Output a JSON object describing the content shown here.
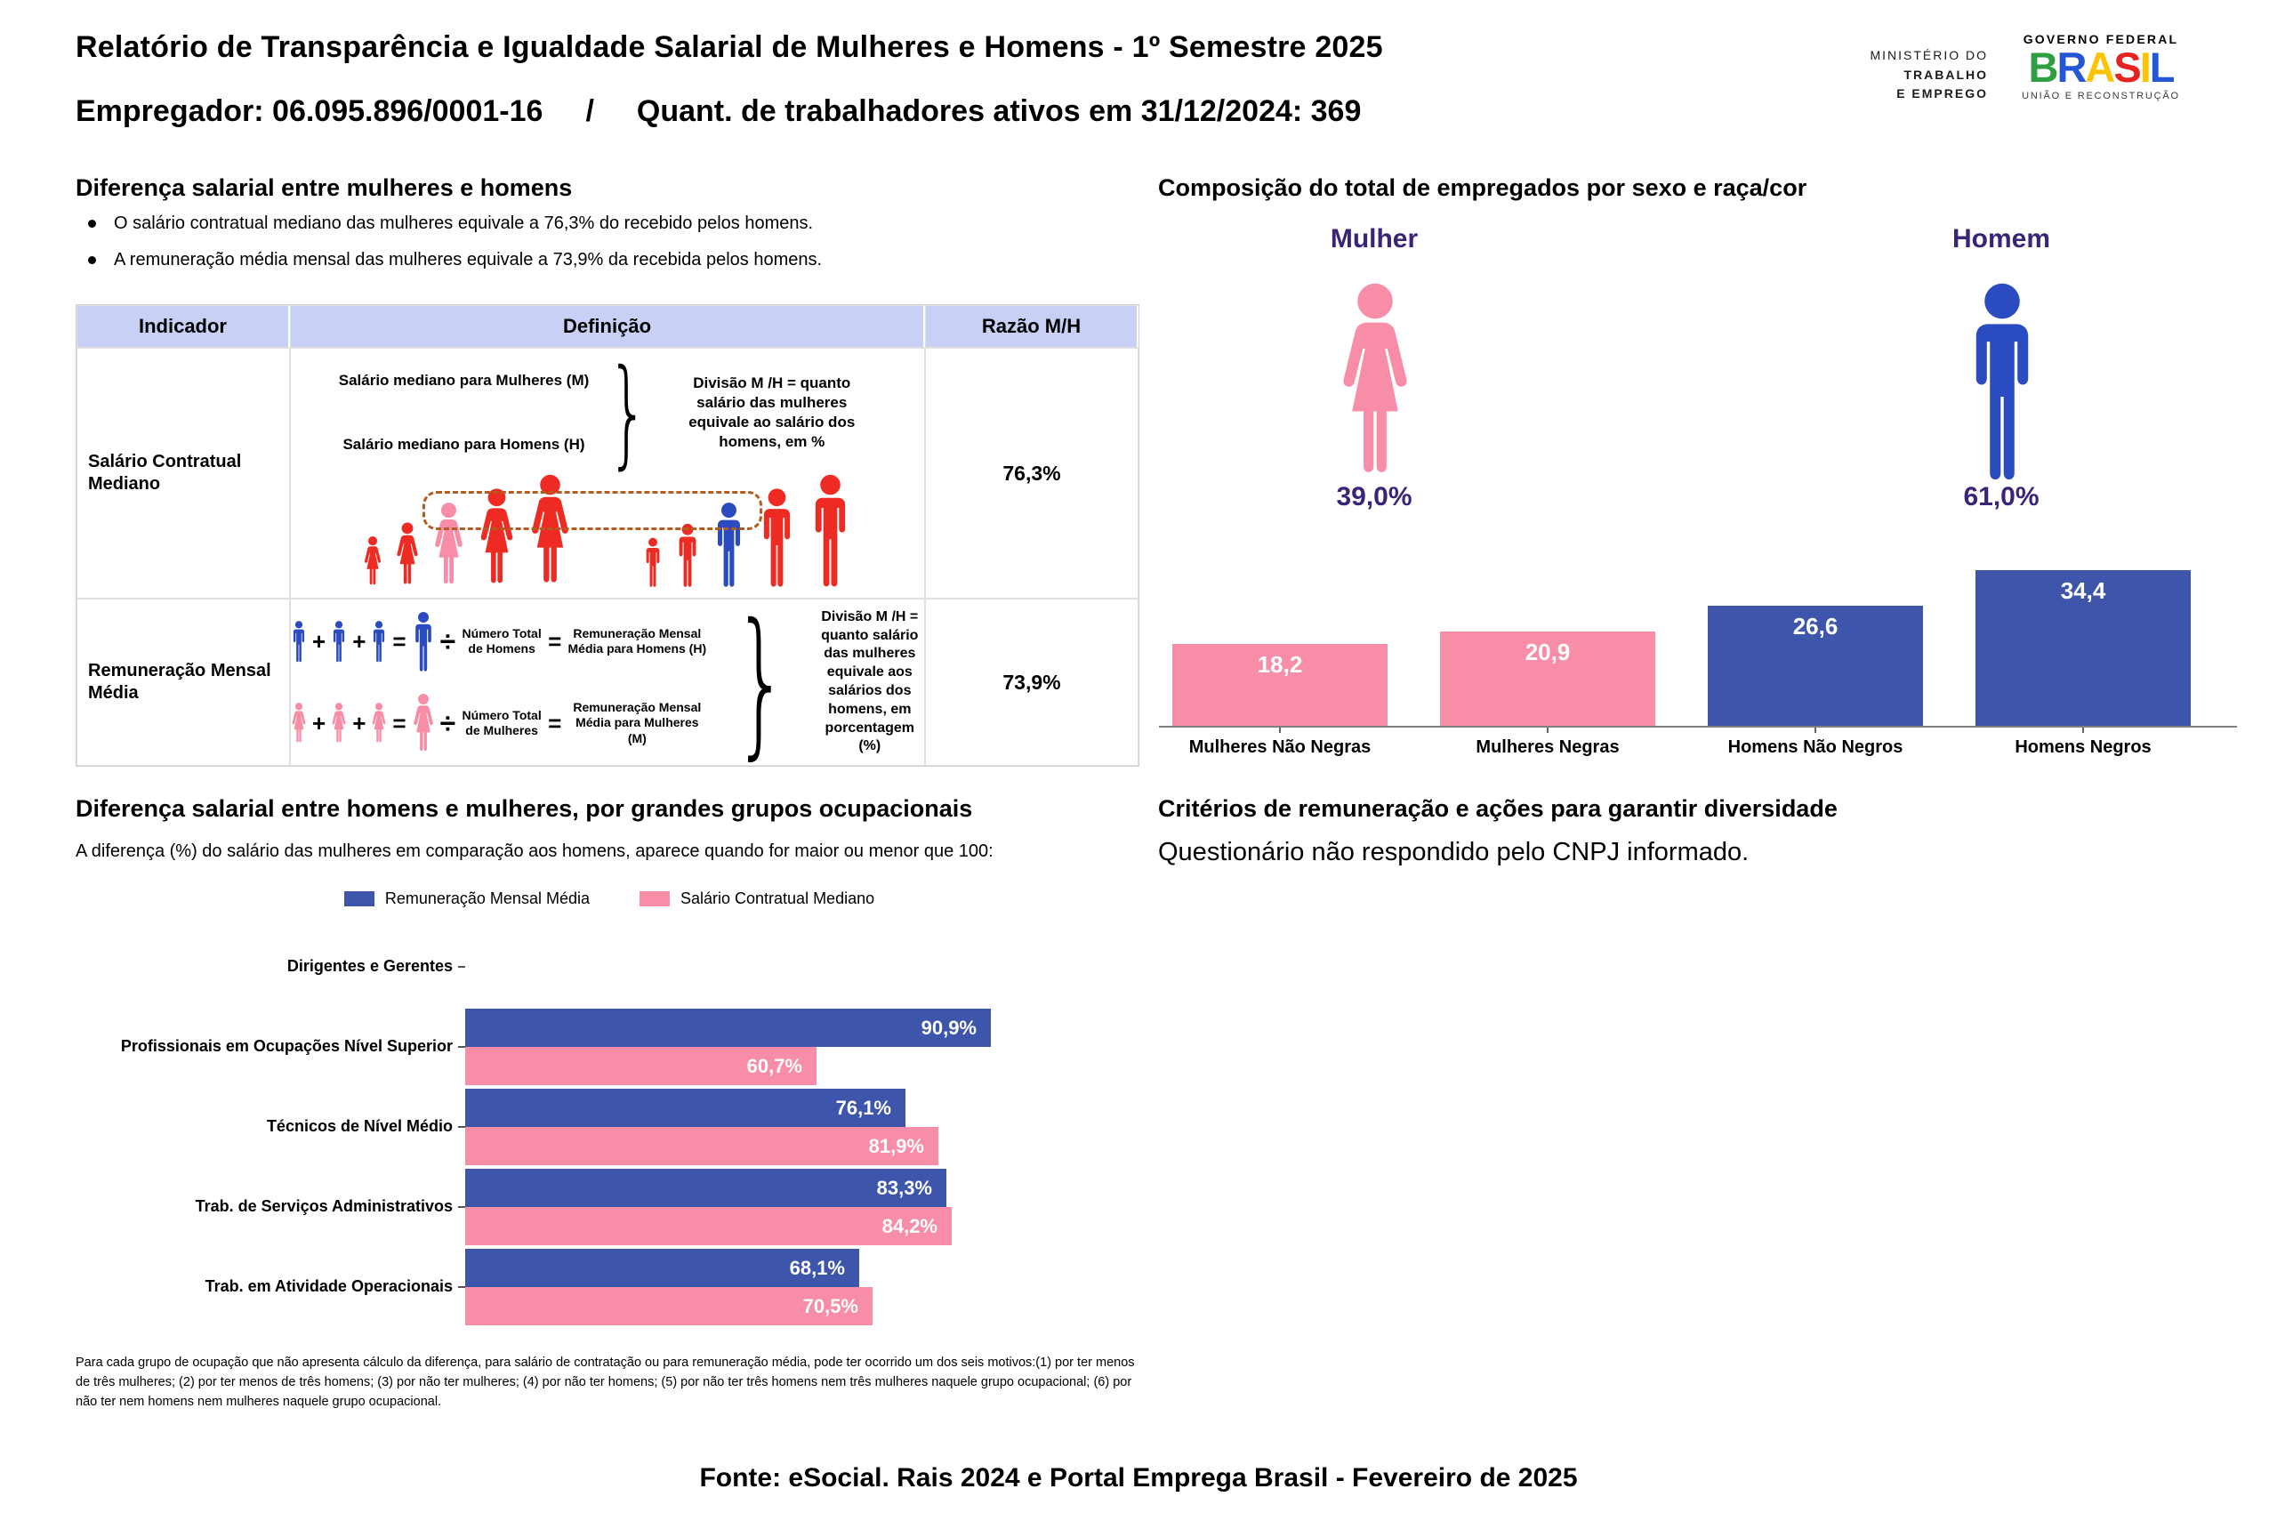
{
  "page": {
    "title": "Relatório de Transparência e Igualdade Salarial de Mulheres e Homens - 1º Semestre 2025",
    "employer": "Empregador: 06.095.896/0001-16",
    "separator": "/",
    "active_workers": "Quant. de trabalhadores ativos em 31/12/2024: 369",
    "footer_source": "Fonte: eSocial. Rais 2024 e Portal Emprega Brasil - Fevereiro de 2025"
  },
  "logos": {
    "ministry_lines": [
      "MINISTÉRIO DO",
      "TRABALHO",
      "E EMPREGO"
    ],
    "governo_federal": "GOVERNO FEDERAL",
    "brasil_letters": [
      {
        "char": "B",
        "color": "#2f9e41"
      },
      {
        "char": "R",
        "color": "#2456d8"
      },
      {
        "char": "A",
        "color": "#fcc406"
      },
      {
        "char": "S",
        "color": "#e52321"
      },
      {
        "char": "I",
        "color": "#fcc406"
      },
      {
        "char": "L",
        "color": "#2456d8"
      }
    ],
    "uniao": "UNIÃO E RECONSTRUÇÃO"
  },
  "salary_diff": {
    "title": "Diferença salarial entre mulheres e homens",
    "bullets": [
      "O salário contratual mediano das mulheres equivale a 76,3% do recebido pelos homens.",
      "A remuneração média mensal das mulheres equivale a 73,9% da recebida pelos homens."
    ]
  },
  "table": {
    "headers": [
      "Indicador",
      "Definição",
      "Razão M/H"
    ],
    "row1": {
      "indicator": "Salário Contratual Mediano",
      "label_women": "Salário mediano para Mulheres (M)",
      "label_men": "Salário mediano para Homens (H)",
      "explanation": "Divisão M /H = quanto salário das mulheres equivale ao salário dos homens, em %",
      "ratio": "76,3%"
    },
    "row2": {
      "indicator": "Remuneração Mensal Média",
      "plus": "+",
      "equals": "=",
      "divide": "÷",
      "men_divisor": "Número Total de Homens",
      "men_result": "Remuneração Mensal Média para Homens (H)",
      "women_divisor": "Número Total de Mulheres",
      "women_result": "Remuneração Mensal Média para Mulheres (M)",
      "explanation": "Divisão M /H = quanto salário das mulheres equivale aos salários dos homens, em porcentagem (%)",
      "ratio": "73,9%"
    }
  },
  "composition": {
    "female_label": "Mulher",
    "female_pct": "39,0%",
    "male_label": "Homem",
    "male_pct": "61,0%"
  },
  "criteria": {
    "title": "Critérios de remuneração e ações para garantir diversidade",
    "text": "Questionário não respondido pelo CNPJ informado."
  },
  "occupational": {
    "footnote": "Para cada grupo de ocupação que não apresenta cálculo da diferença, para salário de contratação ou para remuneração média, pode ter ocorrido um dos seis motivos:(1) por ter menos de três mulheres; (2) por ter menos de três homens; (3) por não ter mulheres; (4) por não ter homens; (5) por não ter três homens nem três mulheres naquele grupo ocupacional; (6) por não ter nem homens nem mulheres naquele grupo ocupacional."
  },
  "chart_data": [
    {
      "type": "bar",
      "title": "Composição do total de empregados por sexo e raça/cor",
      "categories": [
        "Mulheres Não Negras",
        "Mulheres Negras",
        "Homens Não Negros",
        "Homens Negros"
      ],
      "values": [
        18.2,
        20.9,
        26.6,
        34.4
      ],
      "value_labels": [
        "18,2",
        "20,9",
        "26,6",
        "34,4"
      ],
      "colors": [
        "#f78da7",
        "#f78da7",
        "#3d55ab",
        "#3d55ab"
      ],
      "ylim": [
        0,
        37
      ],
      "y_axis": "hidden",
      "gender_split": {
        "Mulher": 39.0,
        "Homem": 61.0
      }
    },
    {
      "type": "bar",
      "orientation": "horizontal",
      "title": "Diferença salarial entre homens e mulheres, por grandes grupos ocupacionais",
      "subtitle": "A diferença (%) do salário das mulheres em comparação aos homens, aparece quando for maior ou menor que 100:",
      "categories": [
        "Dirigentes e Gerentes",
        "Profissionais em Ocupações Nível Superior",
        "Técnicos de Nível Médio",
        "Trab. de Serviços Administrativos",
        "Trab. em Atividade Operacionais"
      ],
      "series": [
        {
          "name": "Remuneração Mensal Média",
          "color": "#3d55ab",
          "values": [
            null,
            90.9,
            76.1,
            83.3,
            68.1
          ],
          "labels": [
            "",
            "90,9%",
            "76,1%",
            "83,3%",
            "68,1%"
          ]
        },
        {
          "name": "Salário Contratual Mediano",
          "color": "#f78da7",
          "values": [
            null,
            60.7,
            81.9,
            84.2,
            70.5
          ],
          "labels": [
            "",
            "60,7%",
            "81,9%",
            "84,2%",
            "70,5%"
          ]
        }
      ],
      "xlim": [
        0,
        100
      ],
      "legend_position": "top"
    }
  ],
  "palette": {
    "red_figure": "#ee2b23",
    "pink": "#f78da7",
    "blue_figure": "#2b4cc0",
    "bar_blue": "#3d55ab",
    "purple_label": "#3b2478",
    "table_header_bg": "#c8d0f5",
    "dashed_box": "#b35c1e",
    "axis_gray": "#7f7f7f"
  }
}
